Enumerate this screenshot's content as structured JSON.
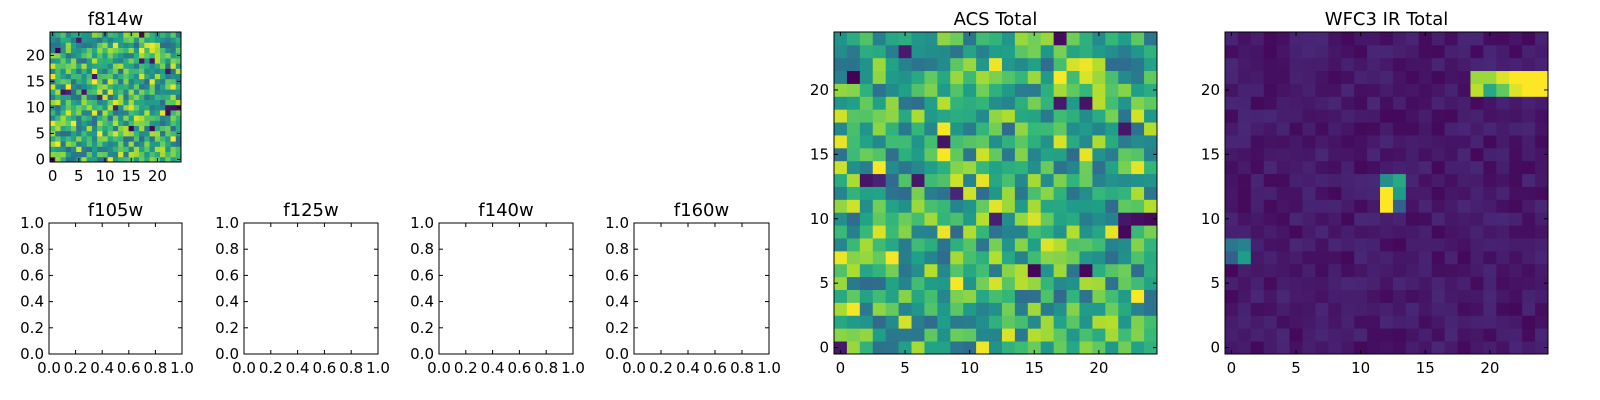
{
  "chart_data": [
    {
      "type": "heatmap",
      "title": "f814w",
      "colormap": "viridis",
      "xlim": [
        -0.5,
        24.5
      ],
      "ylim": [
        -0.5,
        24.5
      ],
      "xticks": [
        0,
        5,
        10,
        15,
        20
      ],
      "yticks": [
        0,
        5,
        10,
        15,
        20
      ],
      "grid_size": [
        25,
        25
      ],
      "values": "noise_field_1"
    },
    {
      "type": "empty",
      "title": "f105w",
      "xlim": [
        0,
        1
      ],
      "ylim": [
        0,
        1
      ],
      "xticks": [
        "0.0",
        "0.2",
        "0.4",
        "0.6",
        "0.8",
        "1.0"
      ],
      "yticks": [
        "0.0",
        "0.2",
        "0.4",
        "0.6",
        "0.8",
        "1.0"
      ]
    },
    {
      "type": "empty",
      "title": "f125w",
      "xlim": [
        0,
        1
      ],
      "ylim": [
        0,
        1
      ],
      "xticks": [
        "0.0",
        "0.2",
        "0.4",
        "0.6",
        "0.8",
        "1.0"
      ],
      "yticks": [
        "0.0",
        "0.2",
        "0.4",
        "0.6",
        "0.8",
        "1.0"
      ]
    },
    {
      "type": "empty",
      "title": "f140w",
      "xlim": [
        0,
        1
      ],
      "ylim": [
        0,
        1
      ],
      "xticks": [
        "0.0",
        "0.2",
        "0.4",
        "0.6",
        "0.8",
        "1.0"
      ],
      "yticks": [
        "0.0",
        "0.2",
        "0.4",
        "0.6",
        "0.8",
        "1.0"
      ]
    },
    {
      "type": "empty",
      "title": "f160w",
      "xlim": [
        0,
        1
      ],
      "ylim": [
        0,
        1
      ],
      "xticks": [
        "0.0",
        "0.2",
        "0.4",
        "0.6",
        "0.8",
        "1.0"
      ],
      "yticks": [
        "0.0",
        "0.2",
        "0.4",
        "0.6",
        "0.8",
        "1.0"
      ]
    },
    {
      "type": "heatmap",
      "title": "ACS Total",
      "colormap": "viridis",
      "xlim": [
        -0.5,
        24.5
      ],
      "ylim": [
        -0.5,
        24.5
      ],
      "xticks": [
        0,
        5,
        10,
        15,
        20
      ],
      "yticks": [
        0,
        5,
        10,
        15,
        20
      ],
      "grid_size": [
        25,
        25
      ],
      "values": "noise_field_1"
    },
    {
      "type": "heatmap",
      "title": "WFC3 IR Total",
      "colormap": "viridis",
      "xlim": [
        -0.5,
        24.5
      ],
      "ylim": [
        -0.5,
        24.5
      ],
      "xticks": [
        0,
        5,
        10,
        15,
        20
      ],
      "yticks": [
        0,
        5,
        10,
        15,
        20
      ],
      "grid_size": [
        25,
        25
      ],
      "values": "low_background_with_sources",
      "bright_cells": [
        {
          "x": 19,
          "y": 20,
          "value": 0.9
        },
        {
          "x": 20,
          "y": 20,
          "value": 0.6
        },
        {
          "x": 21,
          "y": 20,
          "value": 0.75
        },
        {
          "x": 22,
          "y": 20,
          "value": 0.95
        },
        {
          "x": 23,
          "y": 20,
          "value": 1.0
        },
        {
          "x": 24,
          "y": 20,
          "value": 1.0
        },
        {
          "x": 19,
          "y": 21,
          "value": 0.85
        },
        {
          "x": 20,
          "y": 21,
          "value": 0.85
        },
        {
          "x": 21,
          "y": 21,
          "value": 0.95
        },
        {
          "x": 22,
          "y": 21,
          "value": 1.0
        },
        {
          "x": 23,
          "y": 21,
          "value": 1.0
        },
        {
          "x": 24,
          "y": 21,
          "value": 1.0
        },
        {
          "x": 12,
          "y": 11,
          "value": 1.0
        },
        {
          "x": 12,
          "y": 12,
          "value": 1.0
        },
        {
          "x": 12,
          "y": 13,
          "value": 0.5
        },
        {
          "x": 13,
          "y": 12,
          "value": 0.55
        },
        {
          "x": 13,
          "y": 13,
          "value": 0.6
        },
        {
          "x": 13,
          "y": 11,
          "value": 0.3
        },
        {
          "x": 0,
          "y": 8,
          "value": 0.4
        },
        {
          "x": 1,
          "y": 8,
          "value": 0.45
        },
        {
          "x": 1,
          "y": 7,
          "value": 0.55
        },
        {
          "x": 0,
          "y": 7,
          "value": 0.3
        }
      ]
    }
  ]
}
